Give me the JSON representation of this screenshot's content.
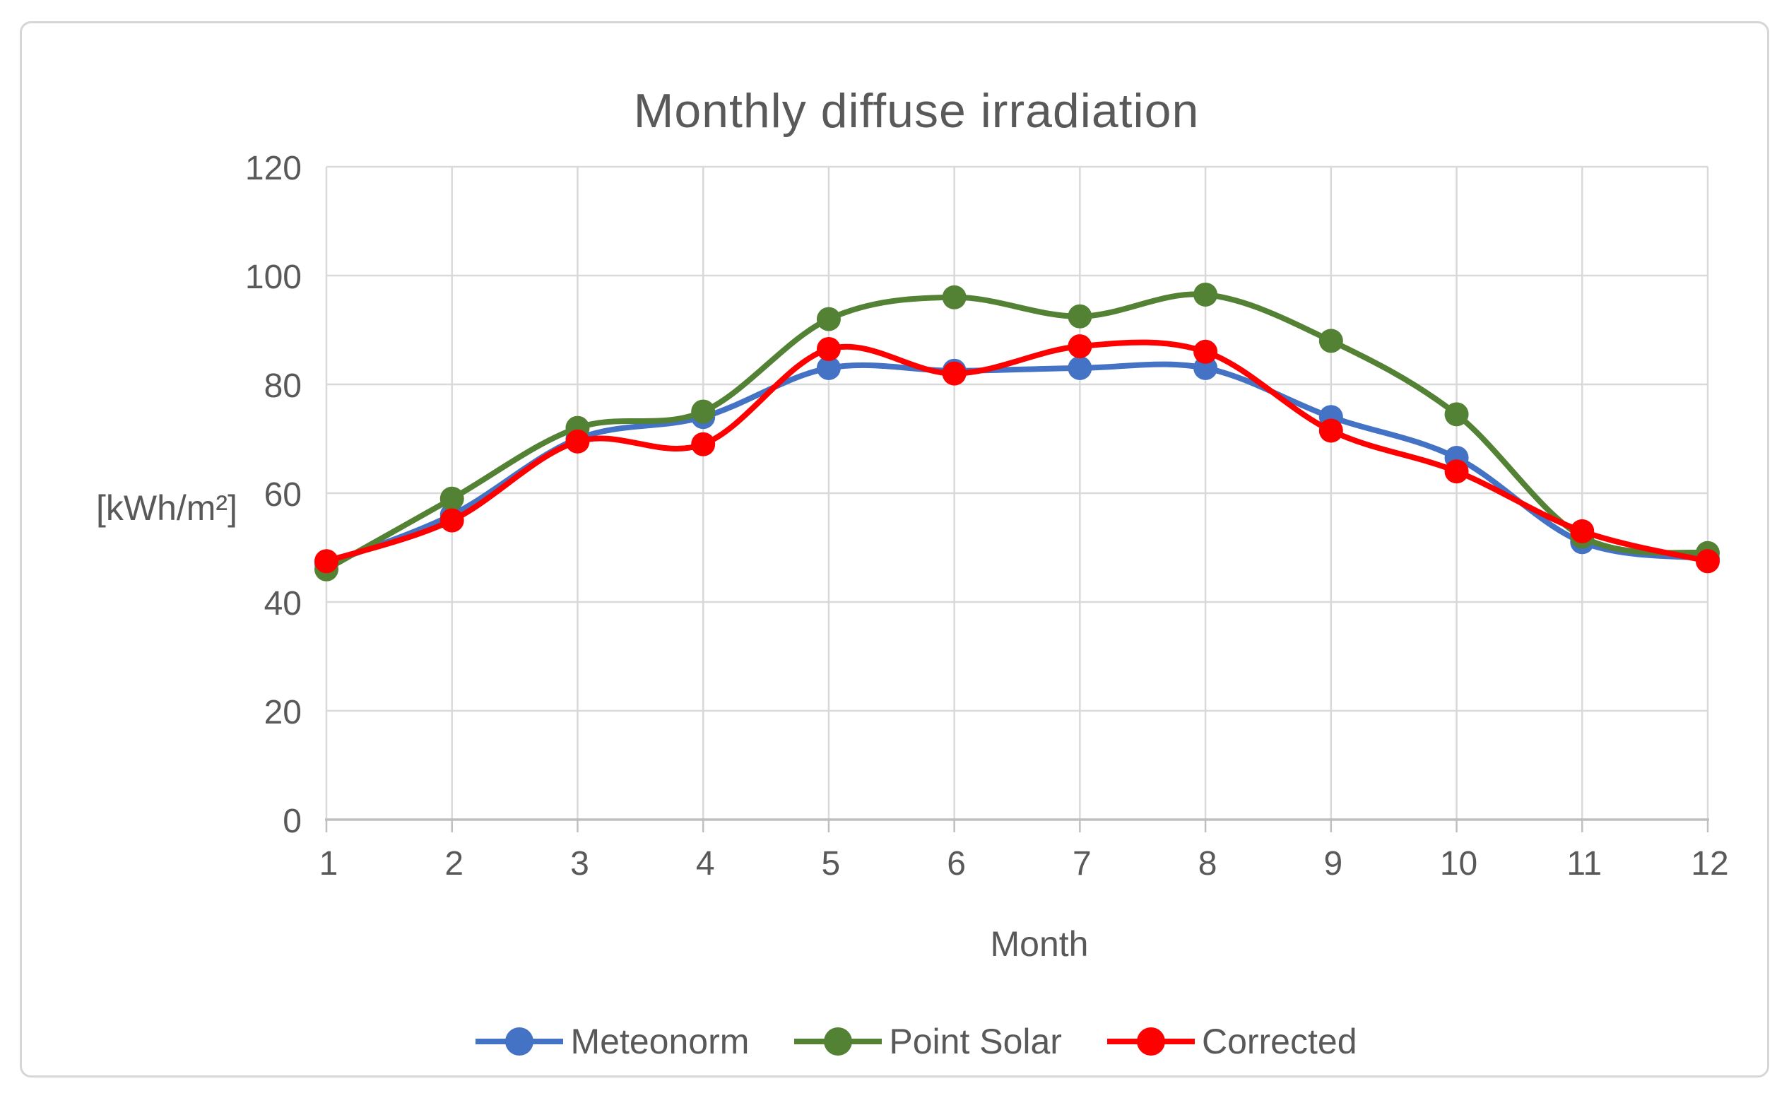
{
  "chart": {
    "title": "Monthly diffuse irradiation",
    "y_axis_title": "[kWh/m²]",
    "x_axis_title": "Month"
  },
  "chart_data": {
    "type": "line",
    "title": "Monthly diffuse irradiation",
    "xlabel": "Month",
    "ylabel": "[kWh/m²]",
    "x": [
      1,
      2,
      3,
      4,
      5,
      6,
      7,
      8,
      9,
      10,
      11,
      12
    ],
    "series": [
      {
        "name": "Meteonorm",
        "color": "#4472C4",
        "values": [
          47,
          56,
          70,
          74,
          83,
          82.5,
          83,
          83,
          74,
          66.5,
          51,
          48
        ]
      },
      {
        "name": "Point Solar",
        "color": "#548235",
        "values": [
          46,
          59,
          72,
          75,
          92,
          96,
          92.5,
          96.5,
          88,
          74.5,
          52,
          49
        ]
      },
      {
        "name": "Corrected",
        "color": "#FF0000",
        "values": [
          47.5,
          55,
          69.5,
          69,
          86.5,
          82,
          87,
          86,
          71.5,
          64,
          53,
          47.5
        ]
      }
    ],
    "ylim": [
      0,
      120
    ],
    "yticks": [
      0,
      20,
      40,
      60,
      80,
      100,
      120
    ],
    "xticks": [
      1,
      2,
      3,
      4,
      5,
      6,
      7,
      8,
      9,
      10,
      11,
      12
    ],
    "grid": true,
    "smooth": true,
    "legend_position": "bottom",
    "marker": "circle"
  },
  "colors": {
    "gridline": "#D9D9D9",
    "axis_line": "#BFBFBF",
    "text": "#595959",
    "background": "#FFFFFF",
    "border": "#D6D6D6"
  }
}
